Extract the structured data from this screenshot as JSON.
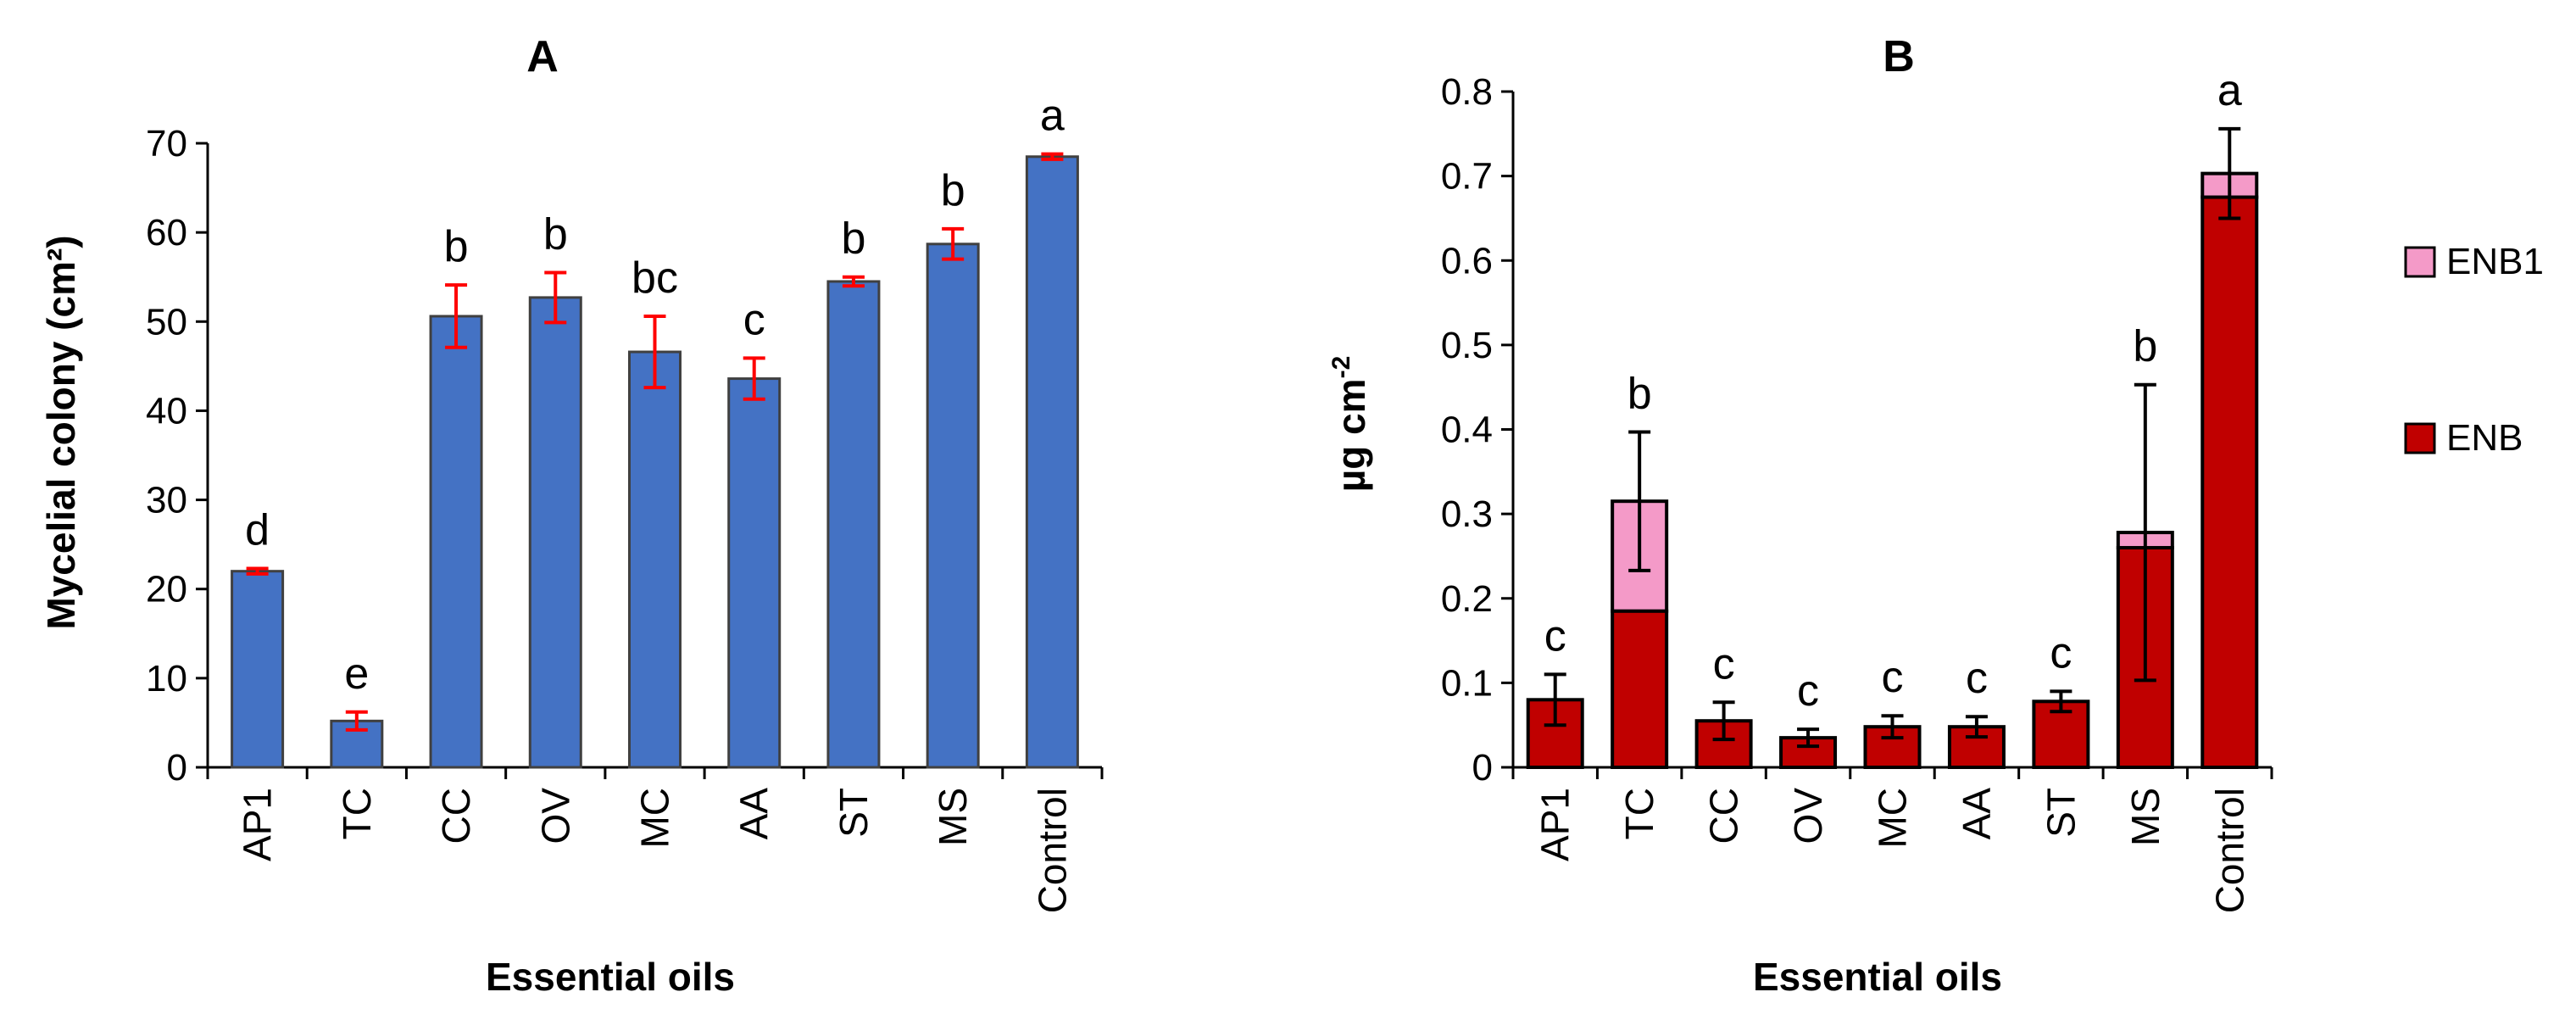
{
  "chart_data": [
    {
      "type": "bar",
      "title": "A",
      "xlabel": "Essential oils",
      "ylabel": "Mycelial colony (cm²)",
      "ylim": [
        0,
        70
      ],
      "yticks": [
        "0",
        "10",
        "20",
        "30",
        "40",
        "50",
        "60",
        "70"
      ],
      "categories": [
        "AP1",
        "TC",
        "CC",
        "OV",
        "MC",
        "AA",
        "ST",
        "MS",
        "Control"
      ],
      "values": [
        22,
        5.2,
        50.6,
        52.7,
        46.6,
        43.6,
        54.5,
        58.7,
        68.5
      ],
      "errors": [
        0.3,
        1.0,
        3.5,
        2.8,
        4.0,
        2.3,
        0.5,
        1.7,
        0.3
      ],
      "significance": [
        "d",
        "e",
        "b",
        "b",
        "bc",
        "c",
        "b",
        "b",
        "a"
      ],
      "colors": {
        "bar": "#4472C4",
        "bar_edge": "#404040",
        "error": "#FF0000"
      }
    },
    {
      "type": "stacked-bar",
      "title": "B",
      "xlabel": "Essential oils",
      "ylabel": "µg cm",
      "ylabel_sup": "-2",
      "ylim": [
        0,
        0.8
      ],
      "yticks": [
        "0",
        "0.1",
        "0.2",
        "0.3",
        "0.4",
        "0.5",
        "0.6",
        "0.7",
        "0.8"
      ],
      "categories": [
        "AP1",
        "TC",
        "CC",
        "OV",
        "MC",
        "AA",
        "ST",
        "MS",
        "Control"
      ],
      "series": [
        {
          "name": "ENB",
          "color": "#C00000",
          "values": [
            0.08,
            0.185,
            0.055,
            0.035,
            0.048,
            0.048,
            0.078,
            0.26,
            0.675
          ]
        },
        {
          "name": "ENB1",
          "color": "#F49AC8",
          "values": [
            0,
            0.13,
            0,
            0,
            0,
            0,
            0,
            0.018,
            0.028
          ]
        }
      ],
      "totals": [
        0.08,
        0.315,
        0.055,
        0.035,
        0.048,
        0.048,
        0.078,
        0.278,
        0.703
      ],
      "errors": [
        0.03,
        0.082,
        0.022,
        0.01,
        0.013,
        0.012,
        0.012,
        0.175,
        0.053
      ],
      "significance": [
        "c",
        "b",
        "c",
        "c",
        "c",
        "c",
        "c",
        "b",
        "a"
      ],
      "legend": [
        "ENB1",
        "ENB"
      ],
      "colors": {
        "bar_edge": "#000000",
        "error": "#000000"
      }
    }
  ]
}
